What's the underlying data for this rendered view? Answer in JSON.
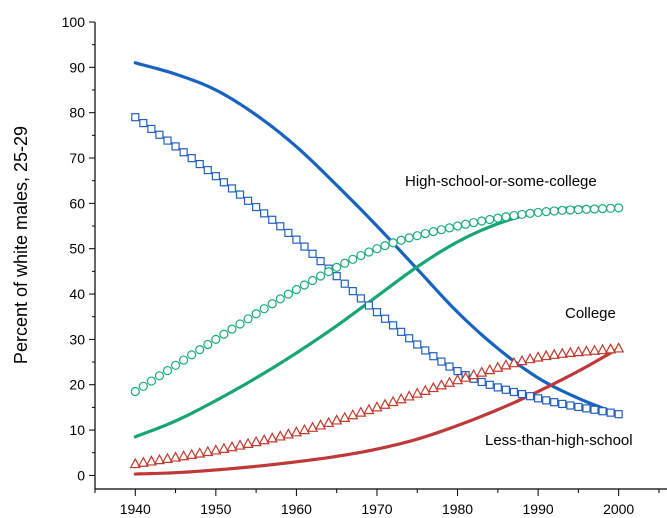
{
  "chart_data": {
    "type": "line",
    "ylabel": "Percent of white males, 25-29",
    "xlabel": "",
    "xlim": [
      1935,
      2006
    ],
    "ylim": [
      -3,
      100
    ],
    "x_ticks": [
      1940,
      1950,
      1960,
      1970,
      1980,
      1990,
      2000
    ],
    "y_ticks": [
      0,
      10,
      20,
      30,
      40,
      50,
      60,
      70,
      80,
      90,
      100
    ],
    "grid": false,
    "annotations": [
      {
        "text": "High-school-or-some-college",
        "series": "hs_model"
      },
      {
        "text": "College",
        "series": "college_model"
      },
      {
        "text": "Less-than-high-school",
        "series": "lths_model"
      }
    ],
    "series": [
      {
        "id": "lths_data",
        "style": "markers",
        "marker": "square",
        "color": "#1f5fbf",
        "x": [
          1940,
          1950,
          1960,
          1970,
          1980,
          1990,
          2000
        ],
        "y": [
          79,
          66,
          52,
          36,
          23,
          17,
          13.5
        ]
      },
      {
        "id": "hs_data",
        "style": "markers",
        "marker": "circle",
        "color": "#1aab7a",
        "x": [
          1940,
          1950,
          1960,
          1970,
          1980,
          1990,
          2000
        ],
        "y": [
          18.5,
          30,
          41,
          50,
          55,
          58,
          59
        ]
      },
      {
        "id": "college_data",
        "style": "markers",
        "marker": "triangle",
        "color": "#c0392b",
        "x": [
          1940,
          1950,
          1960,
          1970,
          1980,
          1990,
          2000
        ],
        "y": [
          2.5,
          5.5,
          9.5,
          15,
          21,
          26,
          28
        ]
      },
      {
        "id": "lths_model",
        "style": "line",
        "color": "#1763bf",
        "x": [
          1940,
          1945,
          1950,
          1955,
          1960,
          1965,
          1970,
          1975,
          1980,
          1985,
          1990,
          1995,
          2000
        ],
        "y": [
          91,
          88.5,
          85,
          79.5,
          72.5,
          64,
          55,
          45.5,
          36,
          28,
          21.5,
          17,
          13.5
        ]
      },
      {
        "id": "hs_model",
        "style": "line",
        "color": "#17a673",
        "x": [
          1940,
          1945,
          1950,
          1955,
          1960,
          1965,
          1970,
          1975,
          1980,
          1985,
          1990,
          1995,
          2000
        ],
        "y": [
          8.5,
          12,
          16.5,
          21.5,
          27,
          33,
          39.5,
          46,
          51.5,
          55.5,
          58,
          59,
          59
        ]
      },
      {
        "id": "college_model",
        "style": "line",
        "color": "#c0393a",
        "x": [
          1940,
          1945,
          1950,
          1955,
          1960,
          1965,
          1970,
          1975,
          1980,
          1985,
          1990,
          1995,
          2000
        ],
        "y": [
          0.3,
          0.6,
          1.2,
          2,
          3,
          4.2,
          5.8,
          8,
          11,
          14.5,
          18.5,
          23,
          28
        ]
      }
    ]
  }
}
